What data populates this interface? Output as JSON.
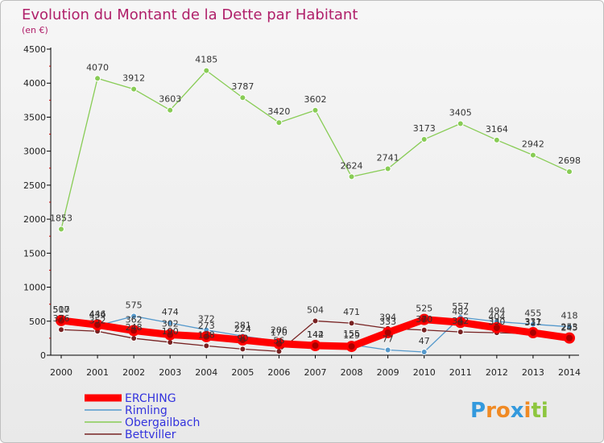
{
  "chart_data": {
    "type": "line",
    "title": "Evolution du Montant de la Dette par Habitant",
    "subtitle": "(en €)",
    "x": [
      2000,
      2001,
      2002,
      2003,
      2004,
      2005,
      2006,
      2007,
      2008,
      2009,
      2010,
      2011,
      2012,
      2013,
      2014
    ],
    "ylim": [
      0,
      4500
    ],
    "yticks": [
      0,
      500,
      1000,
      1500,
      2000,
      2500,
      3000,
      3500,
      4000,
      4500
    ],
    "grid": false,
    "legend_position": "bottom-left",
    "series": [
      {
        "name": "ERCHING",
        "color": "#ff0000",
        "emphasis": true,
        "values": [
          510,
          446,
          362,
          302,
          273,
          224,
          170,
          142,
          129,
          333,
          525,
          482,
          404,
          331,
          253
        ],
        "labels": [
          "510",
          "446",
          "362",
          "302",
          "273",
          "224",
          "170",
          "142",
          "129",
          "333",
          "525",
          "482",
          "404",
          "331",
          "253"
        ]
      },
      {
        "name": "Rimling",
        "color": "#5599cc",
        "values": [
          507,
          434,
          575,
          474,
          372,
          281,
          206,
          144,
          155,
          77,
          47,
          557,
          494,
          455,
          418
        ],
        "labels": [
          "507",
          "434",
          "575",
          "474",
          "372",
          "281",
          "206",
          "144",
          "155",
          "77",
          "47",
          "557",
          "494",
          "455",
          "418"
        ]
      },
      {
        "name": "Obergailbach",
        "color": "#88cc55",
        "values": [
          1853,
          4070,
          3912,
          3603,
          4185,
          3787,
          3420,
          3602,
          2624,
          2741,
          3173,
          3405,
          3164,
          2942,
          2698
        ],
        "labels": [
          "1853",
          "4070",
          "3912",
          "3603",
          "4185",
          "3787",
          "3420",
          "3602",
          "2624",
          "2741",
          "3173",
          "3405",
          "3164",
          "2942",
          "2698"
        ]
      },
      {
        "name": "Bettviller",
        "color": "#772222",
        "values": [
          376,
          352,
          248,
          190,
          138,
          90,
          56,
          504,
          471,
          394,
          370,
          342,
          330,
          317,
          245
        ],
        "labels": [
          "376",
          "352",
          "248",
          "190",
          "138",
          "90",
          "56",
          "504",
          "471",
          "394",
          "370",
          "342",
          "330",
          "317",
          "245"
        ]
      }
    ]
  },
  "logo": {
    "text": "Proxiti",
    "letters": [
      {
        "ch": "P",
        "color": "#3399dd"
      },
      {
        "ch": "r",
        "color": "#f08a24"
      },
      {
        "ch": "o",
        "color": "#f08a24"
      },
      {
        "ch": "x",
        "color": "#3399dd"
      },
      {
        "ch": "i",
        "color": "#f08a24"
      },
      {
        "ch": "t",
        "color": "#8dc63f"
      },
      {
        "ch": "i",
        "color": "#8dc63f"
      }
    ]
  }
}
